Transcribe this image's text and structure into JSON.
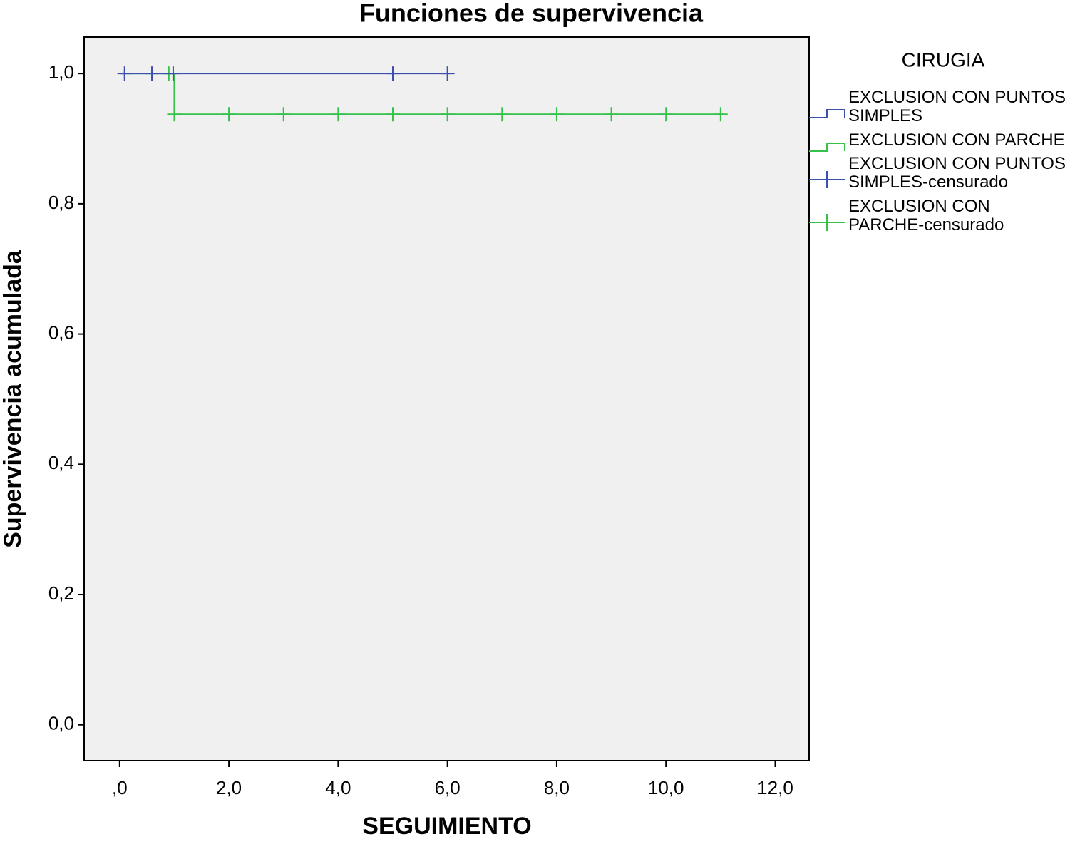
{
  "chart_data": {
    "type": "survival",
    "title": "Funciones de supervivencia",
    "x_label": "SEGUIMIENTO",
    "y_label": "Supervivencia acumulada",
    "xlim": [
      -0.65,
      12.62
    ],
    "ylim": [
      -0.055,
      1.056
    ],
    "xticks": [
      {
        "value": 0,
        "label": ",0"
      },
      {
        "value": 2,
        "label": "2,0"
      },
      {
        "value": 4,
        "label": "4,0"
      },
      {
        "value": 6,
        "label": "6,0"
      },
      {
        "value": 8,
        "label": "8,0"
      },
      {
        "value": 10,
        "label": "10,0"
      },
      {
        "value": 12,
        "label": "12,0"
      }
    ],
    "yticks": [
      {
        "value": 0,
        "label": "0,0"
      },
      {
        "value": 0.2,
        "label": "0,2"
      },
      {
        "value": 0.4,
        "label": "0,4"
      },
      {
        "value": 0.6,
        "label": "0,6"
      },
      {
        "value": 0.8,
        "label": "0,8"
      },
      {
        "value": 1,
        "label": "1,0"
      }
    ],
    "legend_title": "CIRUGIA",
    "series": [
      {
        "name": "EXCLUSION CON PARCHE",
        "censored_name": "EXCLUSION CON PARCHE-censurado",
        "color": "#35c24a",
        "x": [
          0,
          1,
          1,
          11.05
        ],
        "y": [
          1,
          1,
          0.9375,
          0.9375
        ],
        "censored_x": [
          0.9,
          1,
          2,
          3,
          4,
          5,
          6,
          7,
          8,
          9,
          10,
          11
        ],
        "censored_y": [
          1,
          0.9375,
          0.9375,
          0.9375,
          0.9375,
          0.9375,
          0.9375,
          0.9375,
          0.9375,
          0.9375,
          0.9375,
          0.9375
        ]
      },
      {
        "name": "EXCLUSION CON PUNTOS SIMPLES",
        "censored_name": "EXCLUSION CON PUNTOS SIMPLES-censurado",
        "color": "#3a4fae",
        "x": [
          0.05,
          6.05
        ],
        "y": [
          1,
          1
        ],
        "censored_x": [
          0.09,
          0.59,
          0.98,
          5,
          6
        ],
        "censored_y": [
          1,
          1,
          1,
          1,
          1
        ]
      }
    ]
  }
}
